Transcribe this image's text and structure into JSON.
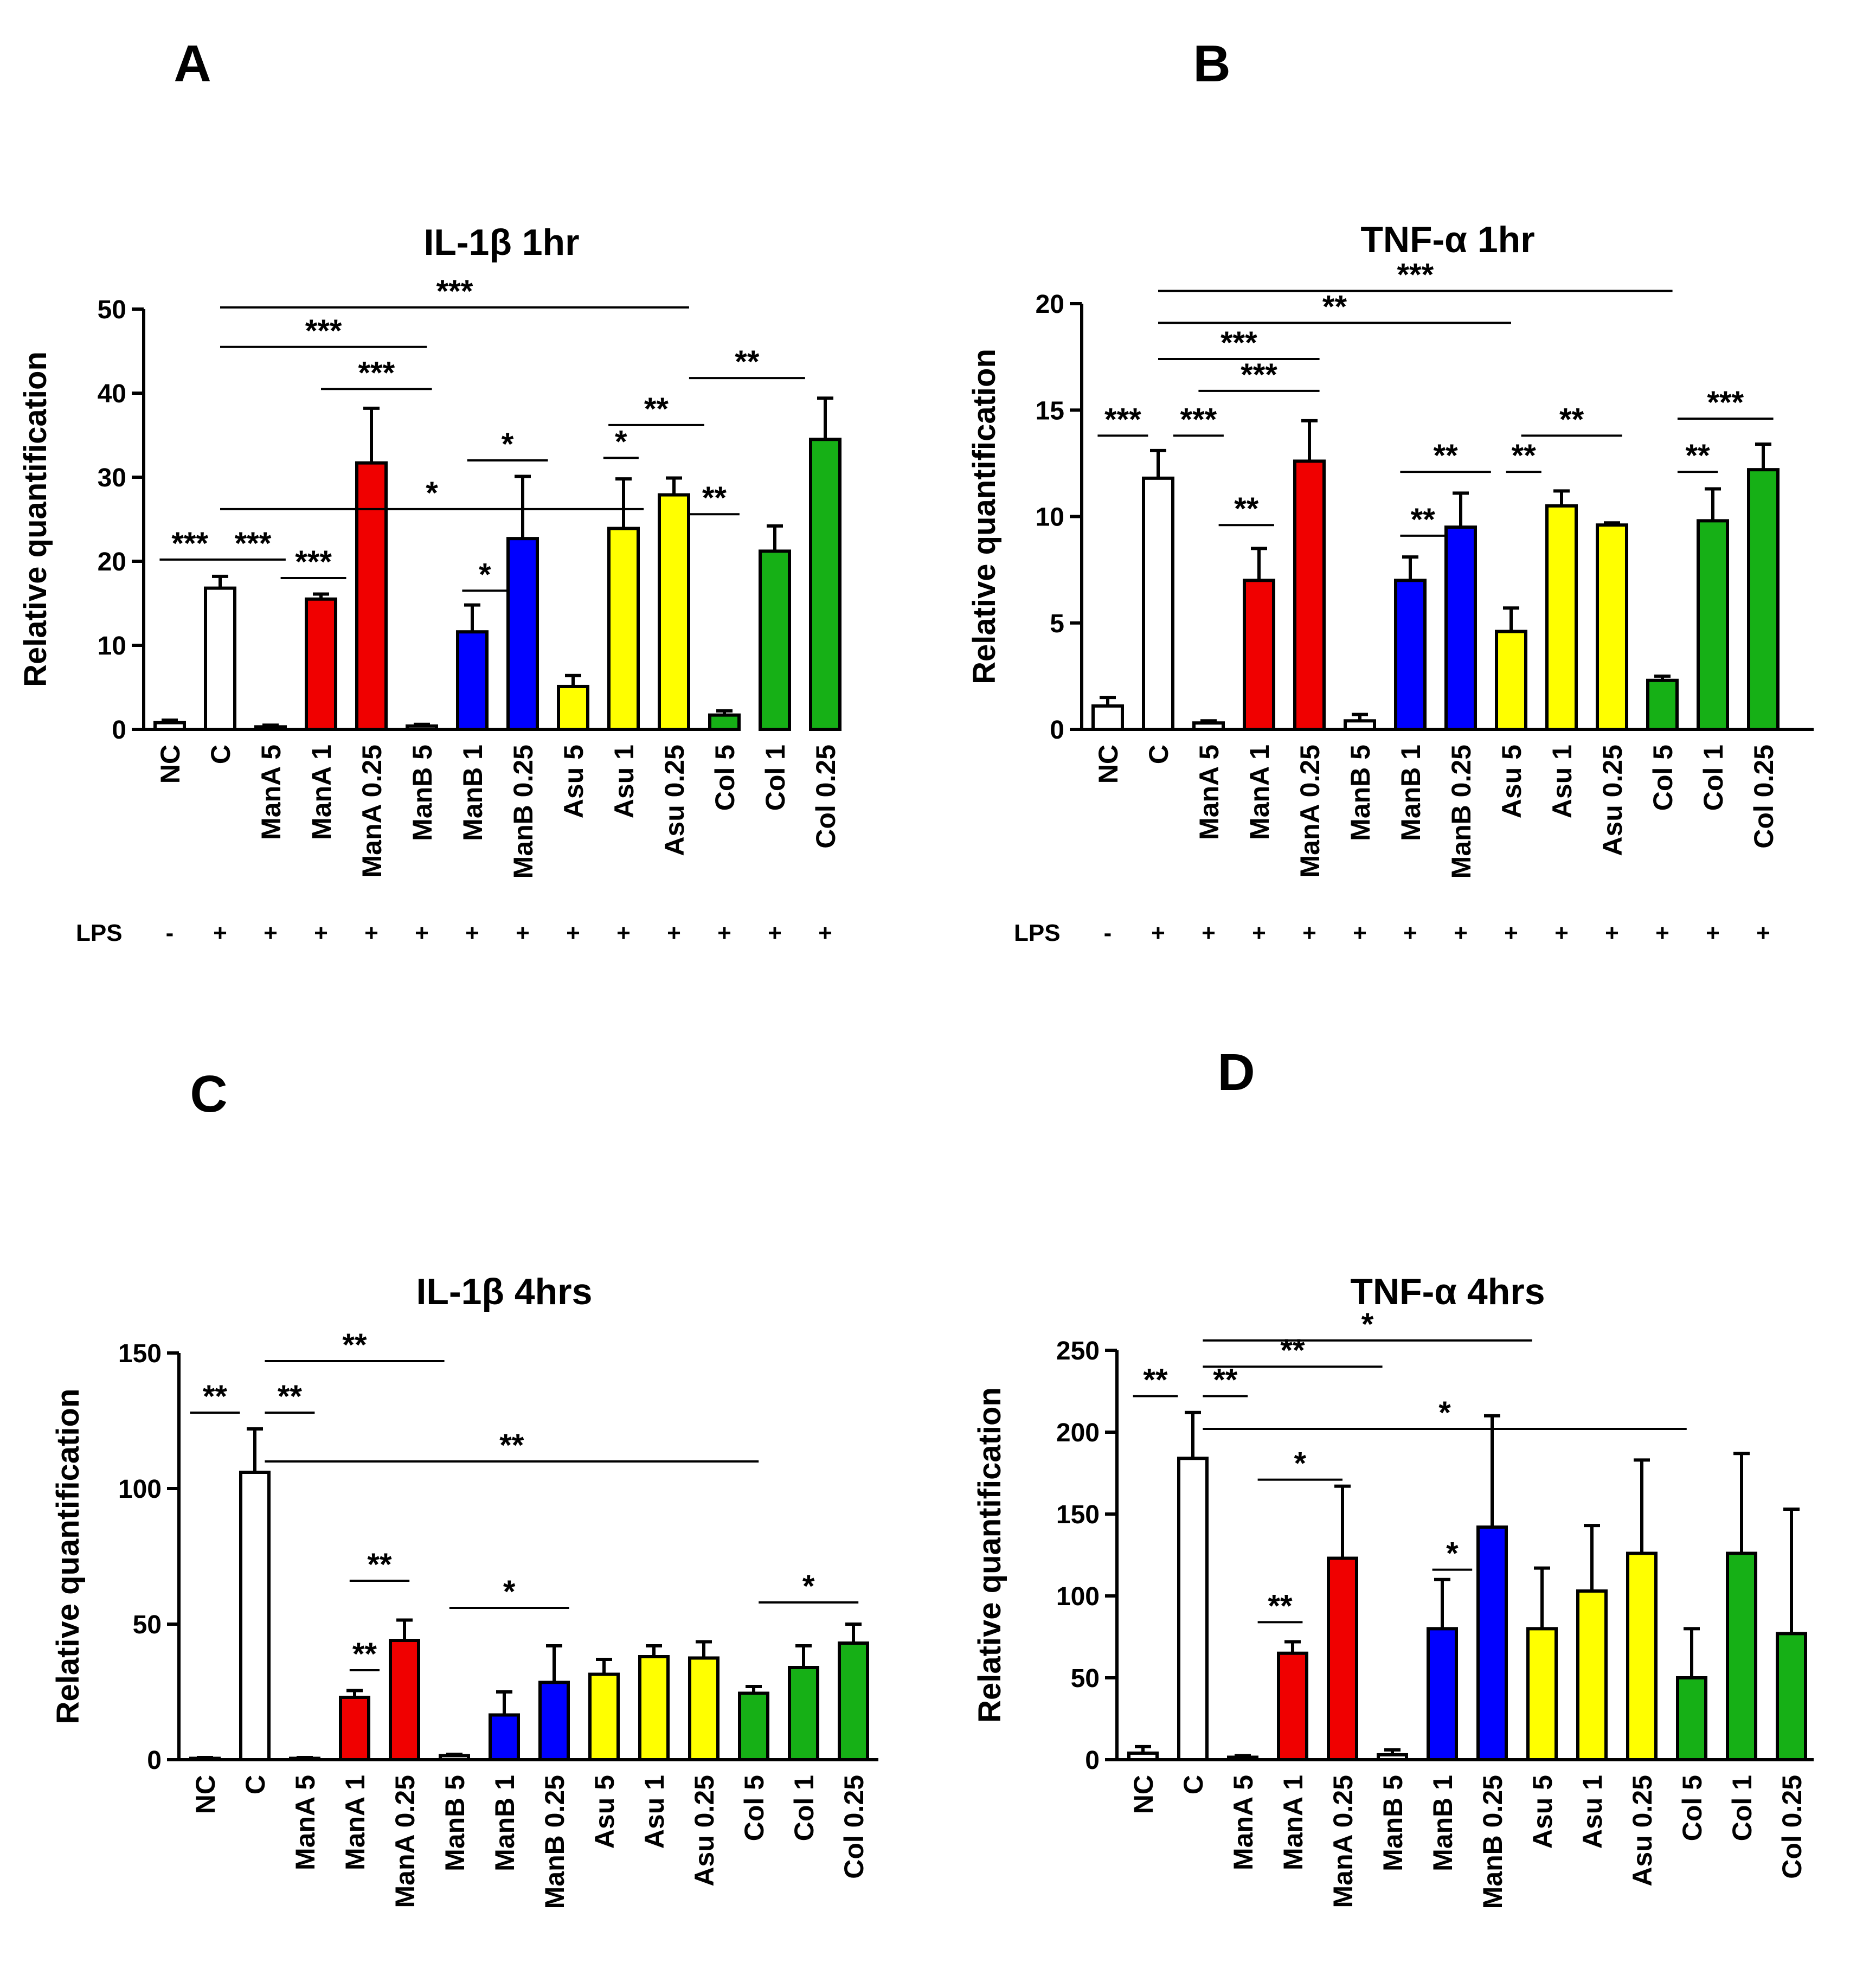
{
  "chart_data": [
    {
      "id": "A",
      "type": "bar",
      "panel_label": "A",
      "title": "IL-1β  1hr",
      "ylabel": "Relative quantification",
      "ylim": [
        0,
        50
      ],
      "yticks": [
        0,
        10,
        20,
        30,
        40,
        50
      ],
      "categories": [
        "NC",
        "C",
        "ManA 5",
        "ManA 1",
        "ManA 0.25",
        "ManB 5",
        "ManB 1",
        "ManB 0.25",
        "Asu 5",
        "Asu 1",
        "Asu 0.25",
        "Col 5",
        "Col 1",
        "Col 0.25"
      ],
      "values": [
        0.8,
        16.8,
        0.3,
        15.5,
        31.7,
        0.4,
        11.6,
        22.7,
        5.1,
        23.9,
        27.9,
        1.7,
        21.2,
        34.5
      ],
      "errors": [
        0.3,
        1.4,
        0.2,
        0.6,
        6.5,
        0.2,
        3.2,
        7.4,
        1.3,
        5.9,
        2.0,
        0.5,
        3.0,
        4.9
      ],
      "colors": [
        "#ffffff",
        "#ffffff",
        "#ffffff",
        "#f00000",
        "#f00000",
        "#ffffff",
        "#0000ff",
        "#0000ff",
        "#ffff00",
        "#ffff00",
        "#ffff00",
        "#16b016",
        "#16b016",
        "#16b016"
      ],
      "lps_label": "LPS",
      "lps": [
        "-",
        "+",
        "+",
        "+",
        "+",
        "+",
        "+",
        "+",
        "+",
        "+",
        "+",
        "+",
        "+",
        "+"
      ],
      "significance": [
        {
          "from": 1,
          "to": 10.3,
          "y": 50.2,
          "label": "***"
        },
        {
          "from": 1,
          "to": 5.1,
          "y": 45.5,
          "label": "***"
        },
        {
          "from": 3,
          "to": 5.2,
          "y": 40.5,
          "label": "***"
        },
        {
          "from": 10.3,
          "to": 12.6,
          "y": 41.8,
          "label": "**"
        },
        {
          "from": 8.7,
          "to": 10.6,
          "y": 36.2,
          "label": "**"
        },
        {
          "from": 5.9,
          "to": 7.5,
          "y": 32,
          "label": "*"
        },
        {
          "from": 8.6,
          "to": 9.3,
          "y": 32.3,
          "label": "*"
        },
        {
          "from": 1,
          "to": 9.4,
          "y": 26.2,
          "label": "*"
        },
        {
          "from": -0.2,
          "to": 1,
          "y": 20.2,
          "label": "***"
        },
        {
          "from": 1,
          "to": 2.3,
          "y": 20.2,
          "label": "***"
        },
        {
          "from": 2.2,
          "to": 3.5,
          "y": 18,
          "label": "***"
        },
        {
          "from": 10.3,
          "to": 11.3,
          "y": 25.6,
          "label": "**"
        },
        {
          "from": 5.8,
          "to": 6.7,
          "y": 16.5,
          "label": "*"
        }
      ]
    },
    {
      "id": "B",
      "type": "bar",
      "panel_label": "B",
      "title": "TNF-α  1hr",
      "ylabel": "Relative quantification",
      "ylim": [
        0,
        20
      ],
      "yticks": [
        0,
        5,
        10,
        15,
        20
      ],
      "categories": [
        "NC",
        "C",
        "ManA 5",
        "ManA 1",
        "ManA 0.25",
        "ManB 5",
        "ManB 1",
        "ManB 0.25",
        "Asu 5",
        "Asu 1",
        "Asu 0.25",
        "Col 5",
        "Col 1",
        "Col 0.25"
      ],
      "values": [
        1.1,
        11.8,
        0.3,
        7.0,
        12.6,
        0.4,
        7.0,
        9.5,
        4.6,
        10.5,
        9.6,
        2.3,
        9.8,
        12.2
      ],
      "errors": [
        0.4,
        1.3,
        0.1,
        1.5,
        1.9,
        0.3,
        1.1,
        1.6,
        1.1,
        0.7,
        0.1,
        0.2,
        1.5,
        1.2
      ],
      "colors": [
        "#ffffff",
        "#ffffff",
        "#ffffff",
        "#f00000",
        "#f00000",
        "#ffffff",
        "#0000ff",
        "#0000ff",
        "#ffff00",
        "#ffff00",
        "#ffff00",
        "#16b016",
        "#16b016",
        "#16b016"
      ],
      "lps_label": "LPS",
      "lps": [
        "-",
        "+",
        "+",
        "+",
        "+",
        "+",
        "+",
        "+",
        "+",
        "+",
        "+",
        "+",
        "+",
        "+"
      ],
      "significance": [
        {
          "from": 1,
          "to": 11.2,
          "y": 20.6,
          "label": "***"
        },
        {
          "from": 1,
          "to": 8,
          "y": 19.1,
          "label": "**"
        },
        {
          "from": 1,
          "to": 4.2,
          "y": 17.4,
          "label": "***"
        },
        {
          "from": 1.8,
          "to": 4.2,
          "y": 15.9,
          "label": "***"
        },
        {
          "from": -0.2,
          "to": 0.8,
          "y": 13.8,
          "label": "***"
        },
        {
          "from": 1.3,
          "to": 2.3,
          "y": 13.8,
          "label": "***"
        },
        {
          "from": 8.2,
          "to": 10.2,
          "y": 13.8,
          "label": "**"
        },
        {
          "from": 11.3,
          "to": 13.2,
          "y": 14.6,
          "label": "***"
        },
        {
          "from": 5.8,
          "to": 7.6,
          "y": 12.1,
          "label": "**"
        },
        {
          "from": 7.9,
          "to": 8.6,
          "y": 12.1,
          "label": "**"
        },
        {
          "from": 11.3,
          "to": 12.1,
          "y": 12.1,
          "label": "**"
        },
        {
          "from": 2.2,
          "to": 3.3,
          "y": 9.6,
          "label": "**"
        },
        {
          "from": 5.8,
          "to": 6.7,
          "y": 9.1,
          "label": "**"
        }
      ]
    },
    {
      "id": "C",
      "type": "bar",
      "panel_label": "C",
      "title": "IL-1β  4hrs",
      "ylabel": "Relative quantification",
      "ylim": [
        0,
        150
      ],
      "yticks": [
        0,
        50,
        100,
        150
      ],
      "categories": [
        "NC",
        "C",
        "ManA 5",
        "ManA 1",
        "ManA 0.25",
        "ManB 5",
        "ManB 1",
        "ManB 0.25",
        "Asu 5",
        "Asu 1",
        "Asu 0.25",
        "Col 5",
        "Col 1",
        "Col 0.25"
      ],
      "values": [
        0.5,
        106,
        0.5,
        23,
        44,
        1.5,
        16.5,
        28.5,
        31.5,
        38,
        37.5,
        24.5,
        34,
        43
      ],
      "errors": [
        0.3,
        16,
        0.3,
        2.5,
        7.5,
        0.5,
        8.5,
        13.5,
        5.5,
        4,
        6,
        2.5,
        8,
        7
      ],
      "colors": [
        "#ffffff",
        "#ffffff",
        "#ffffff",
        "#f00000",
        "#f00000",
        "#ffffff",
        "#0000ff",
        "#0000ff",
        "#ffff00",
        "#ffff00",
        "#ffff00",
        "#16b016",
        "#16b016",
        "#16b016"
      ],
      "significance": [
        {
          "from": -0.3,
          "to": 0.7,
          "y": 128,
          "label": "**"
        },
        {
          "from": 1.2,
          "to": 2.2,
          "y": 128,
          "label": "**"
        },
        {
          "from": 1.2,
          "to": 4.8,
          "y": 147,
          "label": "**"
        },
        {
          "from": 1.2,
          "to": 11.1,
          "y": 110,
          "label": "**"
        },
        {
          "from": 2.9,
          "to": 4.1,
          "y": 66,
          "label": "**"
        },
        {
          "from": 2.9,
          "to": 3.5,
          "y": 33,
          "label": "**"
        },
        {
          "from": 4.9,
          "to": 7.3,
          "y": 56,
          "label": "*"
        },
        {
          "from": 11.1,
          "to": 13.1,
          "y": 58,
          "label": "*"
        }
      ]
    },
    {
      "id": "D",
      "type": "bar",
      "panel_label": "D",
      "title": "TNF-α  4hrs",
      "ylabel": "Relative quantification",
      "ylim": [
        0,
        250
      ],
      "yticks": [
        0,
        50,
        100,
        150,
        200,
        250
      ],
      "categories": [
        "NC",
        "C",
        "ManA 5",
        "ManA 1",
        "ManA 0.25",
        "ManB 5",
        "ManB 1",
        "ManB 0.25",
        "Asu 5",
        "Asu 1",
        "Asu 0.25",
        "Col 5",
        "Col 1",
        "Col 0.25"
      ],
      "values": [
        4,
        184,
        1.5,
        65,
        123,
        3,
        80,
        142,
        80,
        103,
        126,
        50,
        126,
        77
      ],
      "errors": [
        4,
        28,
        1,
        7,
        44,
        3,
        30,
        68,
        37,
        40,
        57,
        30,
        61,
        76
      ],
      "colors": [
        "#ffffff",
        "#ffffff",
        "#ffffff",
        "#f00000",
        "#f00000",
        "#ffffff",
        "#0000ff",
        "#0000ff",
        "#ffff00",
        "#ffff00",
        "#ffff00",
        "#16b016",
        "#16b016",
        "#16b016"
      ],
      "significance": [
        {
          "from": -0.2,
          "to": 0.7,
          "y": 222,
          "label": "**"
        },
        {
          "from": 1.2,
          "to": 2.1,
          "y": 222,
          "label": "**"
        },
        {
          "from": 1.2,
          "to": 4.8,
          "y": 240,
          "label": "**"
        },
        {
          "from": 1.2,
          "to": 7.8,
          "y": 256,
          "label": "*"
        },
        {
          "from": 1.2,
          "to": 10.9,
          "y": 202,
          "label": "*"
        },
        {
          "from": 2.3,
          "to": 4,
          "y": 171,
          "label": "*"
        },
        {
          "from": 2.3,
          "to": 3.2,
          "y": 84,
          "label": "**"
        },
        {
          "from": 5.8,
          "to": 6.6,
          "y": 116,
          "label": "*"
        }
      ]
    }
  ]
}
